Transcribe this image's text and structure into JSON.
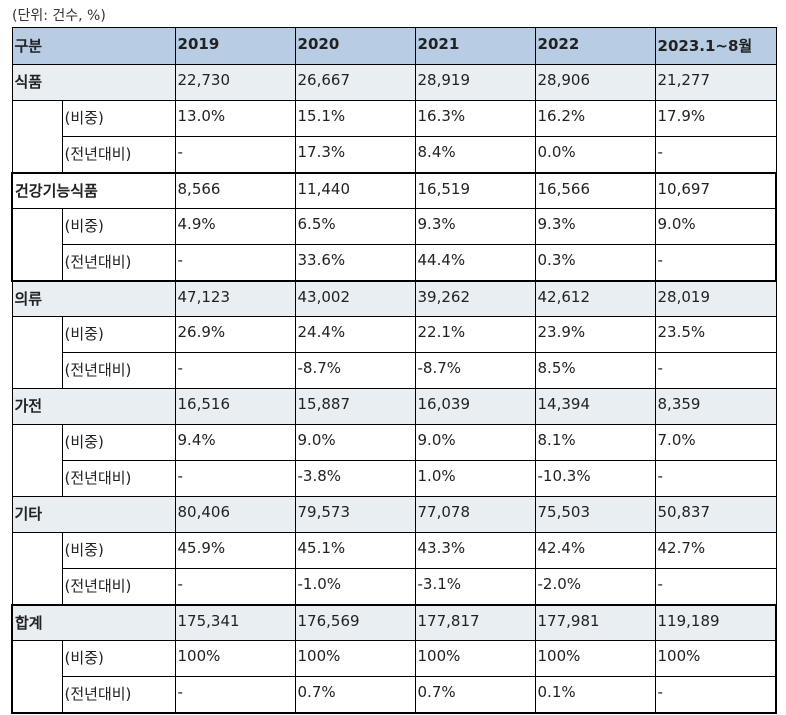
{
  "unit_note": "(단위: 건수, %)",
  "header": {
    "label": "구분",
    "years": [
      "2019",
      "2020",
      "2021",
      "2022",
      "2023.1~8월"
    ]
  },
  "sub_labels": {
    "share": "(비중)",
    "yoy": "(전년대비)"
  },
  "groups": [
    {
      "name": "식품",
      "values": [
        "22,730",
        "26,667",
        "28,919",
        "28,906",
        "21,277"
      ],
      "share": [
        "13.0%",
        "15.1%",
        "16.3%",
        "16.2%",
        "17.9%"
      ],
      "yoy": [
        "-",
        "17.3%",
        "8.4%",
        "0.0%",
        "-"
      ]
    },
    {
      "name": "건강기능식품",
      "values": [
        "8,566",
        "11,440",
        "16,519",
        "16,566",
        "10,697"
      ],
      "share": [
        "4.9%",
        "6.5%",
        "9.3%",
        "9.3%",
        "9.0%"
      ],
      "yoy": [
        "-",
        "33.6%",
        "44.4%",
        "0.3%",
        "-"
      ]
    },
    {
      "name": "의류",
      "values": [
        "47,123",
        "43,002",
        "39,262",
        "42,612",
        "28,019"
      ],
      "share": [
        "26.9%",
        "24.4%",
        "22.1%",
        "23.9%",
        "23.5%"
      ],
      "yoy": [
        "-",
        "-8.7%",
        "-8.7%",
        "8.5%",
        "-"
      ]
    },
    {
      "name": "가전",
      "values": [
        "16,516",
        "15,887",
        "16,039",
        "14,394",
        "8,359"
      ],
      "share": [
        "9.4%",
        "9.0%",
        "9.0%",
        "8.1%",
        "7.0%"
      ],
      "yoy": [
        "-",
        "-3.8%",
        "1.0%",
        "-10.3%",
        "-"
      ]
    },
    {
      "name": "기타",
      "values": [
        "80,406",
        "79,573",
        "77,078",
        "75,503",
        "50,837"
      ],
      "share": [
        "45.9%",
        "45.1%",
        "43.3%",
        "42.4%",
        "42.7%"
      ],
      "yoy": [
        "-",
        "-1.0%",
        "-3.1%",
        "-2.0%",
        "-"
      ]
    },
    {
      "name": "합계",
      "values": [
        "175,341",
        "176,569",
        "177,817",
        "177,981",
        "119,189"
      ],
      "share": [
        "100%",
        "100%",
        "100%",
        "100%",
        "100%"
      ],
      "yoy": [
        "-",
        "0.7%",
        "0.7%",
        "0.1%",
        "-"
      ]
    }
  ]
}
